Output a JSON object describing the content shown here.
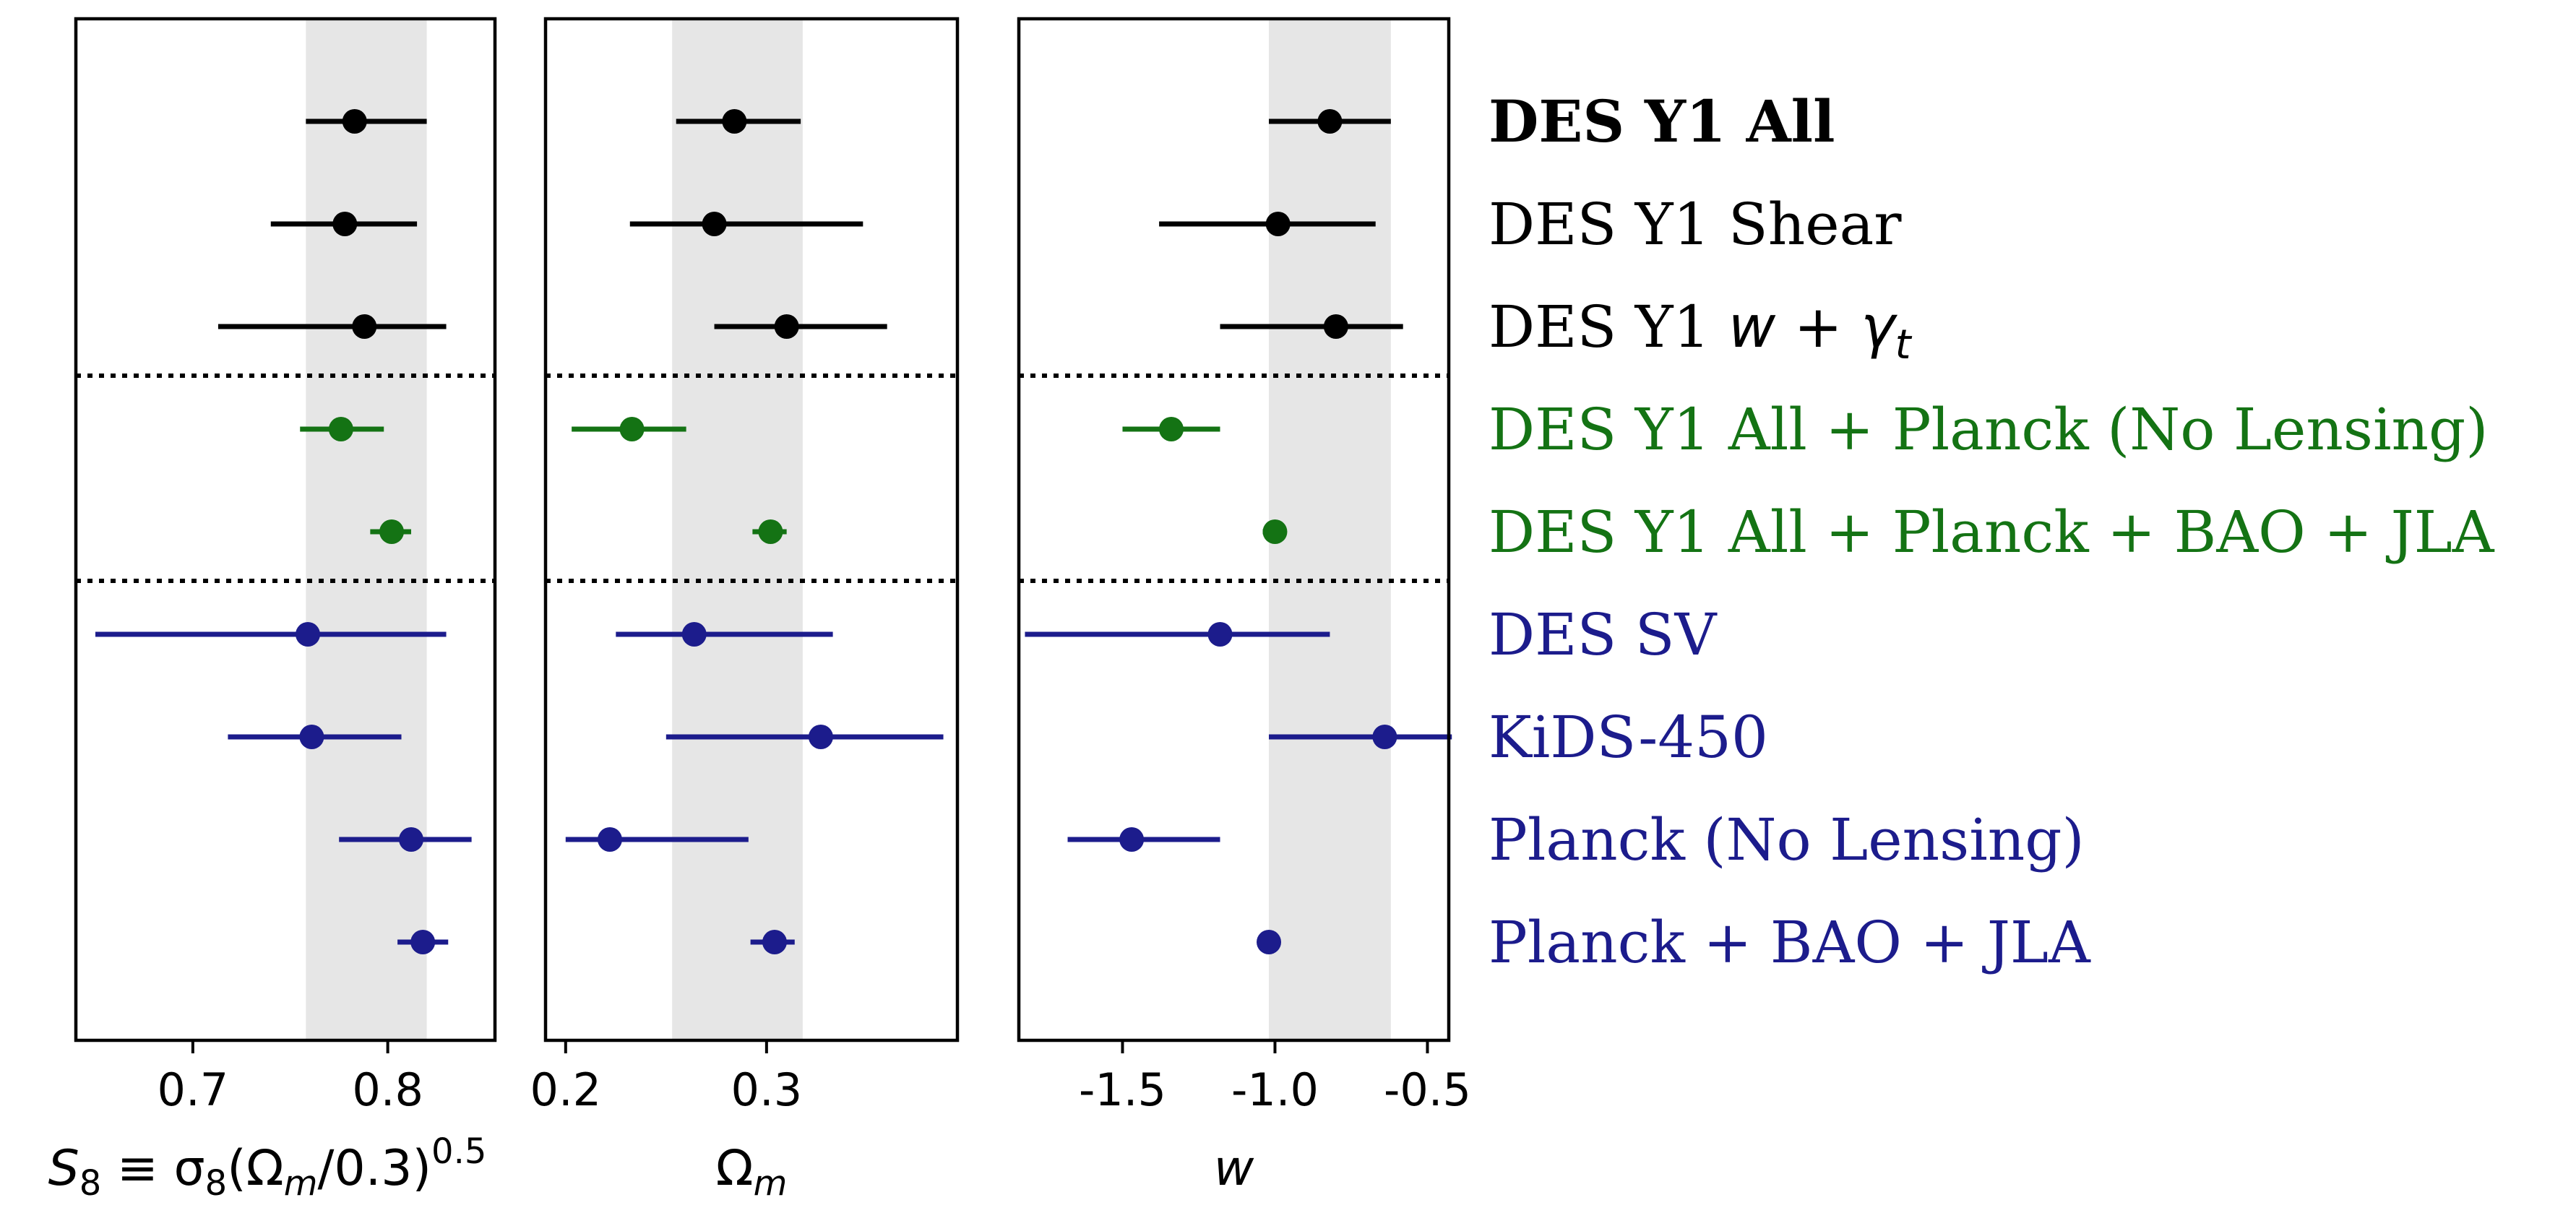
{
  "chart_data": [
    {
      "type": "errorbar",
      "panel": "S8",
      "xlabel_parts": [
        "S",
        "8",
        " ≡ σ",
        "8",
        "(Ω",
        "m",
        "/0.3)",
        "0.5"
      ],
      "xlim": [
        0.64,
        0.855
      ],
      "xticks": [
        0.7,
        0.8
      ],
      "xtick_labels": [
        "0.7",
        "0.8"
      ],
      "band": [
        0.758,
        0.82
      ],
      "points": [
        {
          "value": 0.783,
          "low": 0.758,
          "high": 0.82
        },
        {
          "value": 0.778,
          "low": 0.74,
          "high": 0.815
        },
        {
          "value": 0.788,
          "low": 0.713,
          "high": 0.83
        },
        {
          "value": 0.776,
          "low": 0.755,
          "high": 0.798
        },
        {
          "value": 0.802,
          "low": 0.791,
          "high": 0.812
        },
        {
          "value": 0.759,
          "low": 0.65,
          "high": 0.83
        },
        {
          "value": 0.761,
          "low": 0.718,
          "high": 0.807
        },
        {
          "value": 0.812,
          "low": 0.775,
          "high": 0.843
        },
        {
          "value": 0.818,
          "low": 0.805,
          "high": 0.831
        }
      ]
    },
    {
      "type": "errorbar",
      "panel": "Omega_m",
      "xlabel_parts": [
        "Ω",
        "m"
      ],
      "xlim": [
        0.19,
        0.395
      ],
      "xticks": [
        0.2,
        0.3
      ],
      "xtick_labels": [
        "0.2",
        "0.3"
      ],
      "band": [
        0.253,
        0.318
      ],
      "points": [
        {
          "value": 0.284,
          "low": 0.255,
          "high": 0.317
        },
        {
          "value": 0.274,
          "low": 0.232,
          "high": 0.348
        },
        {
          "value": 0.31,
          "low": 0.274,
          "high": 0.36
        },
        {
          "value": 0.233,
          "low": 0.203,
          "high": 0.26
        },
        {
          "value": 0.302,
          "low": 0.293,
          "high": 0.31
        },
        {
          "value": 0.264,
          "low": 0.225,
          "high": 0.333
        },
        {
          "value": 0.327,
          "low": 0.25,
          "high": 0.388
        },
        {
          "value": 0.222,
          "low": 0.2,
          "high": 0.291
        },
        {
          "value": 0.304,
          "low": 0.292,
          "high": 0.314
        }
      ]
    },
    {
      "type": "errorbar",
      "panel": "w",
      "xlabel_parts": [
        "w"
      ],
      "xlim": [
        -1.84,
        -0.43
      ],
      "xticks": [
        -1.5,
        -1.0,
        -0.5
      ],
      "xtick_labels": [
        "-1.5",
        "-1.0",
        "-0.5"
      ],
      "band": [
        -1.02,
        -0.62
      ],
      "points": [
        {
          "value": -0.82,
          "low": -1.02,
          "high": -0.62
        },
        {
          "value": -0.99,
          "low": -1.38,
          "high": -0.67
        },
        {
          "value": -0.8,
          "low": -1.18,
          "high": -0.58
        },
        {
          "value": -1.34,
          "low": -1.5,
          "high": -1.18
        },
        {
          "value": -1.0,
          "low": -1.04,
          "high": -0.97
        },
        {
          "value": -1.18,
          "low": -1.82,
          "high": -0.82
        },
        {
          "value": -0.64,
          "low": -1.02,
          "high": -0.42
        },
        {
          "value": -1.47,
          "low": -1.68,
          "high": -1.18
        },
        {
          "value": -1.02,
          "low": -1.05,
          "high": -0.99
        }
      ]
    }
  ],
  "rows": [
    {
      "label": "DES Y1 All",
      "color": "#000000",
      "bold": true
    },
    {
      "label": "DES Y1 Shear",
      "color": "#000000",
      "bold": false
    },
    {
      "label_parts": [
        "DES Y1 ",
        "w",
        " + ",
        "γ",
        "t"
      ],
      "color": "#000000",
      "bold": false
    },
    {
      "label": "DES Y1 All + Planck (No Lensing)",
      "color": "#147314",
      "bold": false
    },
    {
      "label": "DES Y1 All + Planck + BAO + JLA",
      "color": "#147314",
      "bold": false
    },
    {
      "label": "DES SV",
      "color": "#1c1c8c",
      "bold": false
    },
    {
      "label": "KiDS-450",
      "color": "#1c1c8c",
      "bold": false
    },
    {
      "label": "Planck (No Lensing)",
      "color": "#1c1c8c",
      "bold": false
    },
    {
      "label": "Planck + BAO + JLA",
      "color": "#1c1c8c",
      "bold": false
    }
  ],
  "separators_after_rows": [
    2,
    4
  ],
  "colors": {
    "band": "#e6e6e6",
    "frame": "#000000",
    "black": "#000000",
    "green": "#147314",
    "navy": "#1c1c8c"
  }
}
